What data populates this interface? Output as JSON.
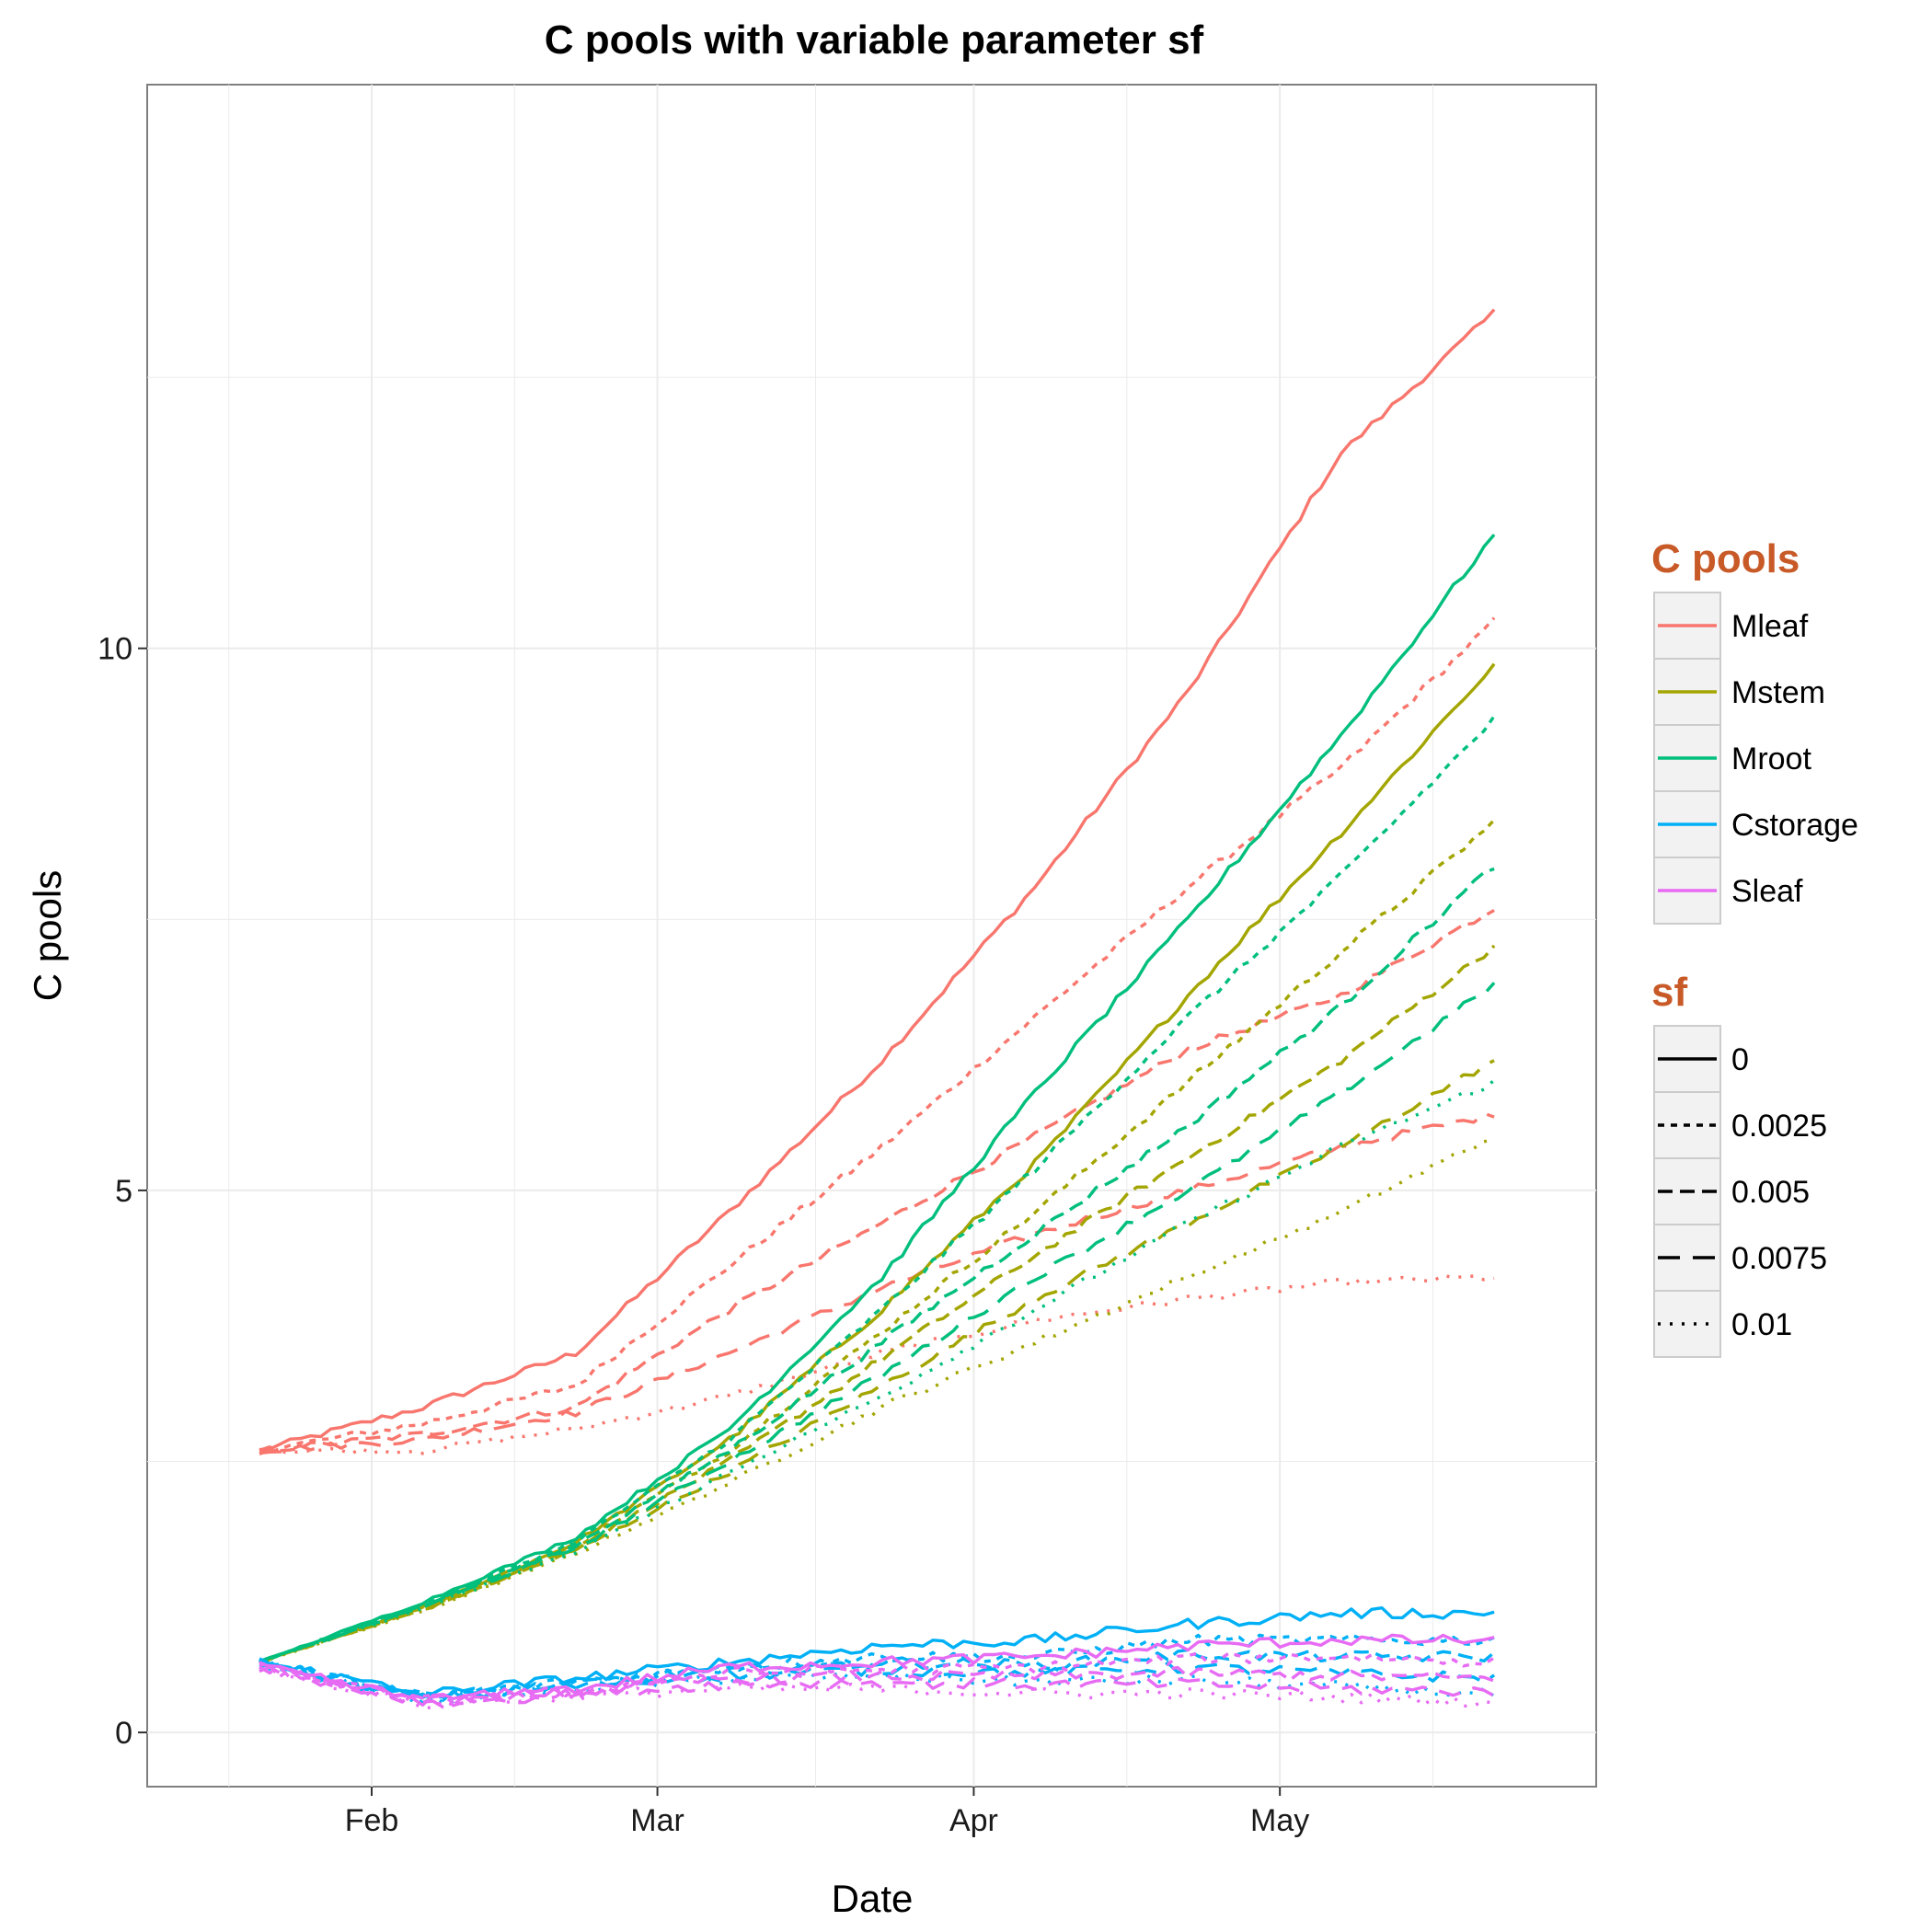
{
  "chart_data": {
    "type": "line",
    "title": "C pools with variable parameter sf",
    "xlabel": "Date",
    "ylabel": "C pools",
    "x_ticks": [
      {
        "label": "Feb",
        "date": "2011-02-01"
      },
      {
        "label": "Mar",
        "date": "2011-03-01"
      },
      {
        "label": "Apr",
        "date": "2011-04-01"
      },
      {
        "label": "May",
        "date": "2011-05-01"
      }
    ],
    "y_ticks": [
      0,
      5,
      10
    ],
    "xlim": [
      "2011-01-10",
      "2011-06-01"
    ],
    "ylim": [
      -0.5,
      15.2
    ],
    "grid": true,
    "legend_position": "right",
    "colors": {
      "Mleaf": "#F8766D",
      "Mstem": "#A3A500",
      "Mroot": "#00BF7D",
      "Cstorage": "#00B0F6",
      "Sleaf": "#E76BF3",
      "title_accent": "#C85A28",
      "panel_border": "#7f7f7f",
      "grid": "#ebebeb"
    },
    "legend_pools": {
      "title": "C pools",
      "items": [
        "Mleaf",
        "Mstem",
        "Mroot",
        "Cstorage",
        "Sleaf"
      ]
    },
    "legend_sf": {
      "title": "sf",
      "items": [
        "0",
        "0.0025",
        "0.005",
        "0.0075",
        "0.01"
      ]
    },
    "dates": [
      "2011-01-21",
      "2011-02-06",
      "2011-02-21",
      "2011-03-08",
      "2011-03-23",
      "2011-04-07",
      "2011-04-22",
      "2011-05-07",
      "2011-05-22"
    ],
    "series": [
      {
        "name": "Mleaf",
        "sf": "0",
        "values": [
          2.6,
          3.0,
          3.5,
          4.8,
          6.2,
          7.8,
          9.6,
          11.8,
          13.1
        ]
      },
      {
        "name": "Mleaf",
        "sf": "0.0025",
        "values": [
          2.6,
          2.85,
          3.2,
          4.3,
          5.4,
          6.6,
          7.8,
          8.9,
          10.25
        ]
      },
      {
        "name": "Mleaf",
        "sf": "0.005",
        "values": [
          2.6,
          2.75,
          3.0,
          3.9,
          4.7,
          5.5,
          6.3,
          6.8,
          7.6
        ]
      },
      {
        "name": "Mleaf",
        "sf": "0.0075",
        "values": [
          2.6,
          2.7,
          2.95,
          3.5,
          4.1,
          4.6,
          5.0,
          5.4,
          5.7
        ]
      },
      {
        "name": "Mleaf",
        "sf": "0.01",
        "values": [
          2.6,
          2.6,
          2.8,
          3.1,
          3.5,
          3.8,
          4.0,
          4.15,
          4.2
        ]
      },
      {
        "name": "Mstem",
        "sf": "0",
        "values": [
          0.65,
          1.15,
          1.75,
          2.7,
          3.9,
          5.25,
          6.8,
          8.3,
          9.85
        ]
      },
      {
        "name": "Mstem",
        "sf": "0.0025",
        "values": [
          0.65,
          1.15,
          1.72,
          2.6,
          3.7,
          4.8,
          6.0,
          7.2,
          8.4
        ]
      },
      {
        "name": "Mstem",
        "sf": "0.005",
        "values": [
          0.65,
          1.14,
          1.7,
          2.5,
          3.45,
          4.4,
          5.3,
          6.2,
          7.25
        ]
      },
      {
        "name": "Mstem",
        "sf": "0.0075",
        "values": [
          0.65,
          1.13,
          1.68,
          2.4,
          3.2,
          4.0,
          4.7,
          5.4,
          6.2
        ]
      },
      {
        "name": "Mstem",
        "sf": "0.01",
        "values": [
          0.65,
          1.12,
          1.65,
          2.3,
          3.0,
          3.6,
          4.2,
          4.8,
          5.5
        ]
      },
      {
        "name": "Mroot",
        "sf": "0",
        "values": [
          0.65,
          1.2,
          1.8,
          2.8,
          4.2,
          5.9,
          7.5,
          9.2,
          11.05
        ]
      },
      {
        "name": "Mroot",
        "sf": "0.0025",
        "values": [
          0.65,
          1.18,
          1.76,
          2.7,
          3.9,
          5.2,
          6.6,
          7.9,
          9.35
        ]
      },
      {
        "name": "Mroot",
        "sf": "0.005",
        "values": [
          0.65,
          1.17,
          1.73,
          2.6,
          3.6,
          4.6,
          5.6,
          6.7,
          8.0
        ]
      },
      {
        "name": "Mroot",
        "sf": "0.0075",
        "values": [
          0.65,
          1.16,
          1.7,
          2.5,
          3.3,
          4.2,
          5.0,
          5.9,
          6.9
        ]
      },
      {
        "name": "Mroot",
        "sf": "0.01",
        "values": [
          0.65,
          1.15,
          1.67,
          2.4,
          3.1,
          3.9,
          4.7,
          5.4,
          6.0
        ]
      },
      {
        "name": "Cstorage",
        "sf": "0",
        "values": [
          0.65,
          0.35,
          0.5,
          0.65,
          0.8,
          0.85,
          1.0,
          1.1,
          1.1
        ]
      },
      {
        "name": "Cstorage",
        "sf": "0.0025",
        "values": [
          0.65,
          0.33,
          0.47,
          0.6,
          0.7,
          0.7,
          0.85,
          0.85,
          0.85
        ]
      },
      {
        "name": "Cstorage",
        "sf": "0.005",
        "values": [
          0.65,
          0.32,
          0.45,
          0.57,
          0.65,
          0.62,
          0.72,
          0.7,
          0.7
        ]
      },
      {
        "name": "Cstorage",
        "sf": "0.0075",
        "values": [
          0.65,
          0.31,
          0.43,
          0.53,
          0.58,
          0.55,
          0.6,
          0.55,
          0.5
        ]
      },
      {
        "name": "Cstorage",
        "sf": "0.01",
        "values": [
          0.65,
          0.3,
          0.41,
          0.5,
          0.52,
          0.47,
          0.48,
          0.42,
          0.35
        ]
      },
      {
        "name": "Sleaf",
        "sf": "0",
        "values": [
          0.6,
          0.3,
          0.4,
          0.6,
          0.65,
          0.7,
          0.8,
          0.85,
          0.85
        ]
      },
      {
        "name": "Sleaf",
        "sf": "0.0025",
        "values": [
          0.6,
          0.29,
          0.38,
          0.55,
          0.58,
          0.6,
          0.68,
          0.7,
          0.65
        ]
      },
      {
        "name": "Sleaf",
        "sf": "0.005",
        "values": [
          0.6,
          0.28,
          0.37,
          0.5,
          0.52,
          0.52,
          0.55,
          0.52,
          0.5
        ]
      },
      {
        "name": "Sleaf",
        "sf": "0.0075",
        "values": [
          0.6,
          0.27,
          0.35,
          0.45,
          0.46,
          0.44,
          0.45,
          0.4,
          0.38
        ]
      },
      {
        "name": "Sleaf",
        "sf": "0.01",
        "values": [
          0.6,
          0.26,
          0.34,
          0.4,
          0.4,
          0.36,
          0.36,
          0.32,
          0.28
        ]
      }
    ]
  }
}
